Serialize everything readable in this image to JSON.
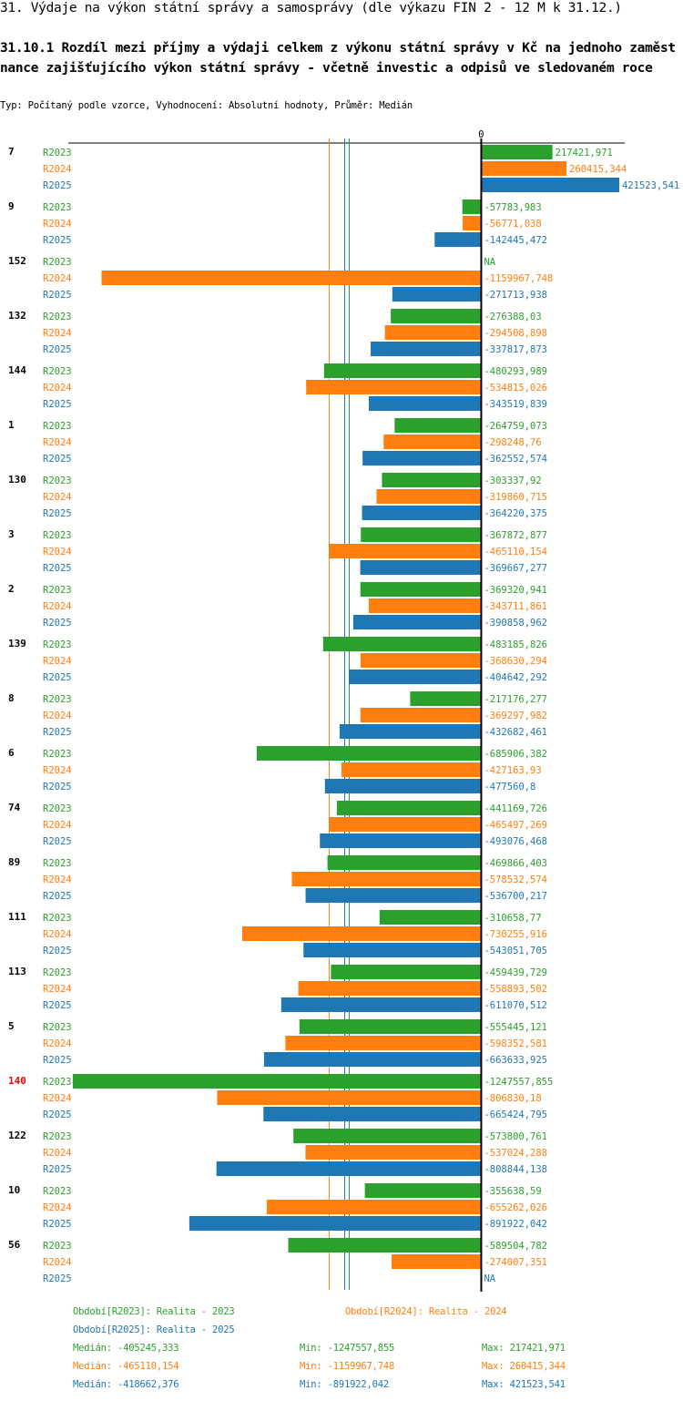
{
  "header": {
    "title": "31. Výdaje na výkon státní správy a samosprávy (dle výkazu FIN 2 - 12 M k 31.12.)",
    "subtitle": "31.10.1 Rozdíl mezi příjmy a výdaji celkem z výkonu státní správy v Kč na jednoho zaměstnance zajišťujícího výkon státní správy - včetně investic a odpisů ve sledovaném roce",
    "type_line": "Typ: Počítaný podle vzorce, Vyhodnocení: Absolutní hodnoty, Průměr: Medián"
  },
  "colors": {
    "R2023": "#2ca02c",
    "R2024": "#ff7f0e",
    "R2025": "#1f77b4",
    "highlight": "#ff0000"
  },
  "chart_data": {
    "type": "bar",
    "orientation": "horizontal",
    "zero_label": "0",
    "xlim": [
      -1247557.855,
      421523.541
    ],
    "series_names": [
      "R2023",
      "R2024",
      "R2025"
    ],
    "groups": [
      {
        "id": "7",
        "highlight": false,
        "values": [
          217421.971,
          260415.344,
          421523.541
        ],
        "labels": [
          "217421,971",
          "260415,344",
          "421523,541"
        ]
      },
      {
        "id": "9",
        "highlight": false,
        "values": [
          -57783.983,
          -56771.038,
          -142445.472
        ],
        "labels": [
          "-57783,983",
          "-56771,038",
          "-142445,472"
        ]
      },
      {
        "id": "152",
        "highlight": false,
        "values": [
          null,
          -1159967.748,
          -271713.938
        ],
        "labels": [
          "NA",
          "-1159967,748",
          "-271713,938"
        ]
      },
      {
        "id": "132",
        "highlight": false,
        "values": [
          -276388.03,
          -294508.898,
          -337817.873
        ],
        "labels": [
          "-276388,03",
          "-294508,898",
          "-337817,873"
        ]
      },
      {
        "id": "144",
        "highlight": false,
        "values": [
          -480293.989,
          -534815.026,
          -343519.839
        ],
        "labels": [
          "-480293,989",
          "-534815,026",
          "-343519,839"
        ]
      },
      {
        "id": "1",
        "highlight": false,
        "values": [
          -264759.073,
          -298248.76,
          -362552.574
        ],
        "labels": [
          "-264759,073",
          "-298248,76",
          "-362552,574"
        ]
      },
      {
        "id": "130",
        "highlight": false,
        "values": [
          -303337.92,
          -319860.715,
          -364220.375
        ],
        "labels": [
          "-303337,92",
          "-319860,715",
          "-364220,375"
        ]
      },
      {
        "id": "3",
        "highlight": false,
        "values": [
          -367872.877,
          -465110.154,
          -369667.277
        ],
        "labels": [
          "-367872,877",
          "-465110,154",
          "-369667,277"
        ]
      },
      {
        "id": "2",
        "highlight": false,
        "values": [
          -369320.941,
          -343711.861,
          -390858.962
        ],
        "labels": [
          "-369320,941",
          "-343711,861",
          "-390858,962"
        ]
      },
      {
        "id": "139",
        "highlight": false,
        "values": [
          -483185.826,
          -368630.294,
          -404642.292
        ],
        "labels": [
          "-483185,826",
          "-368630,294",
          "-404642,292"
        ]
      },
      {
        "id": "8",
        "highlight": false,
        "values": [
          -217176.277,
          -369297.982,
          -432682.461
        ],
        "labels": [
          "-217176,277",
          "-369297,982",
          "-432682,461"
        ]
      },
      {
        "id": "6",
        "highlight": false,
        "values": [
          -685906.382,
          -427163.93,
          -477560.8
        ],
        "labels": [
          "-685906,382",
          "-427163,93",
          "-477560,8"
        ]
      },
      {
        "id": "74",
        "highlight": false,
        "values": [
          -441169.726,
          -465497.269,
          -493076.468
        ],
        "labels": [
          "-441169,726",
          "-465497,269",
          "-493076,468"
        ]
      },
      {
        "id": "89",
        "highlight": false,
        "values": [
          -469866.403,
          -578532.574,
          -536700.217
        ],
        "labels": [
          "-469866,403",
          "-578532,574",
          "-536700,217"
        ]
      },
      {
        "id": "111",
        "highlight": false,
        "values": [
          -310658.77,
          -730255.916,
          -543051.705
        ],
        "labels": [
          "-310658,77",
          "-730255,916",
          "-543051,705"
        ]
      },
      {
        "id": "113",
        "highlight": false,
        "values": [
          -459439.729,
          -558893.502,
          -611070.512
        ],
        "labels": [
          "-459439,729",
          "-558893,502",
          "-611070,512"
        ]
      },
      {
        "id": "5",
        "highlight": false,
        "values": [
          -555445.121,
          -598352.581,
          -663633.925
        ],
        "labels": [
          "-555445,121",
          "-598352,581",
          "-663633,925"
        ]
      },
      {
        "id": "140",
        "highlight": true,
        "values": [
          -1247557.855,
          -806830.18,
          -665424.795
        ],
        "labels": [
          "-1247557,855",
          "-806830,18",
          "-665424,795"
        ]
      },
      {
        "id": "122",
        "highlight": false,
        "values": [
          -573800.761,
          -537024.288,
          -808844.138
        ],
        "labels": [
          "-573800,761",
          "-537024,288",
          "-808844,138"
        ]
      },
      {
        "id": "10",
        "highlight": false,
        "values": [
          -355638.59,
          -655262.026,
          -891922.042
        ],
        "labels": [
          "-355638,59",
          "-655262,026",
          "-891922,042"
        ]
      },
      {
        "id": "56",
        "highlight": false,
        "values": [
          -589504.782,
          -274007.351,
          null
        ],
        "labels": [
          "-589504,782",
          "-274007,351",
          "NA"
        ]
      }
    ],
    "medians": [
      -405245.333,
      -465110.154,
      -418662.376
    ]
  },
  "legend": {
    "period_2023": "Období[R2023]: Realita - 2023",
    "period_2024": "Období[R2024]: Realita - 2024",
    "period_2025": "Období[R2025]: Realita - 2025",
    "stats": [
      {
        "median": "Medián: -405245,333",
        "min": "Min: -1247557,855",
        "max": "Max: 217421,971"
      },
      {
        "median": "Medián: -465110,154",
        "min": "Min: -1159967,748",
        "max": "Max: 260415,344"
      },
      {
        "median": "Medián: -418662,376",
        "min": "Min: -891922,042",
        "max": "Max: 421523,541"
      }
    ]
  }
}
